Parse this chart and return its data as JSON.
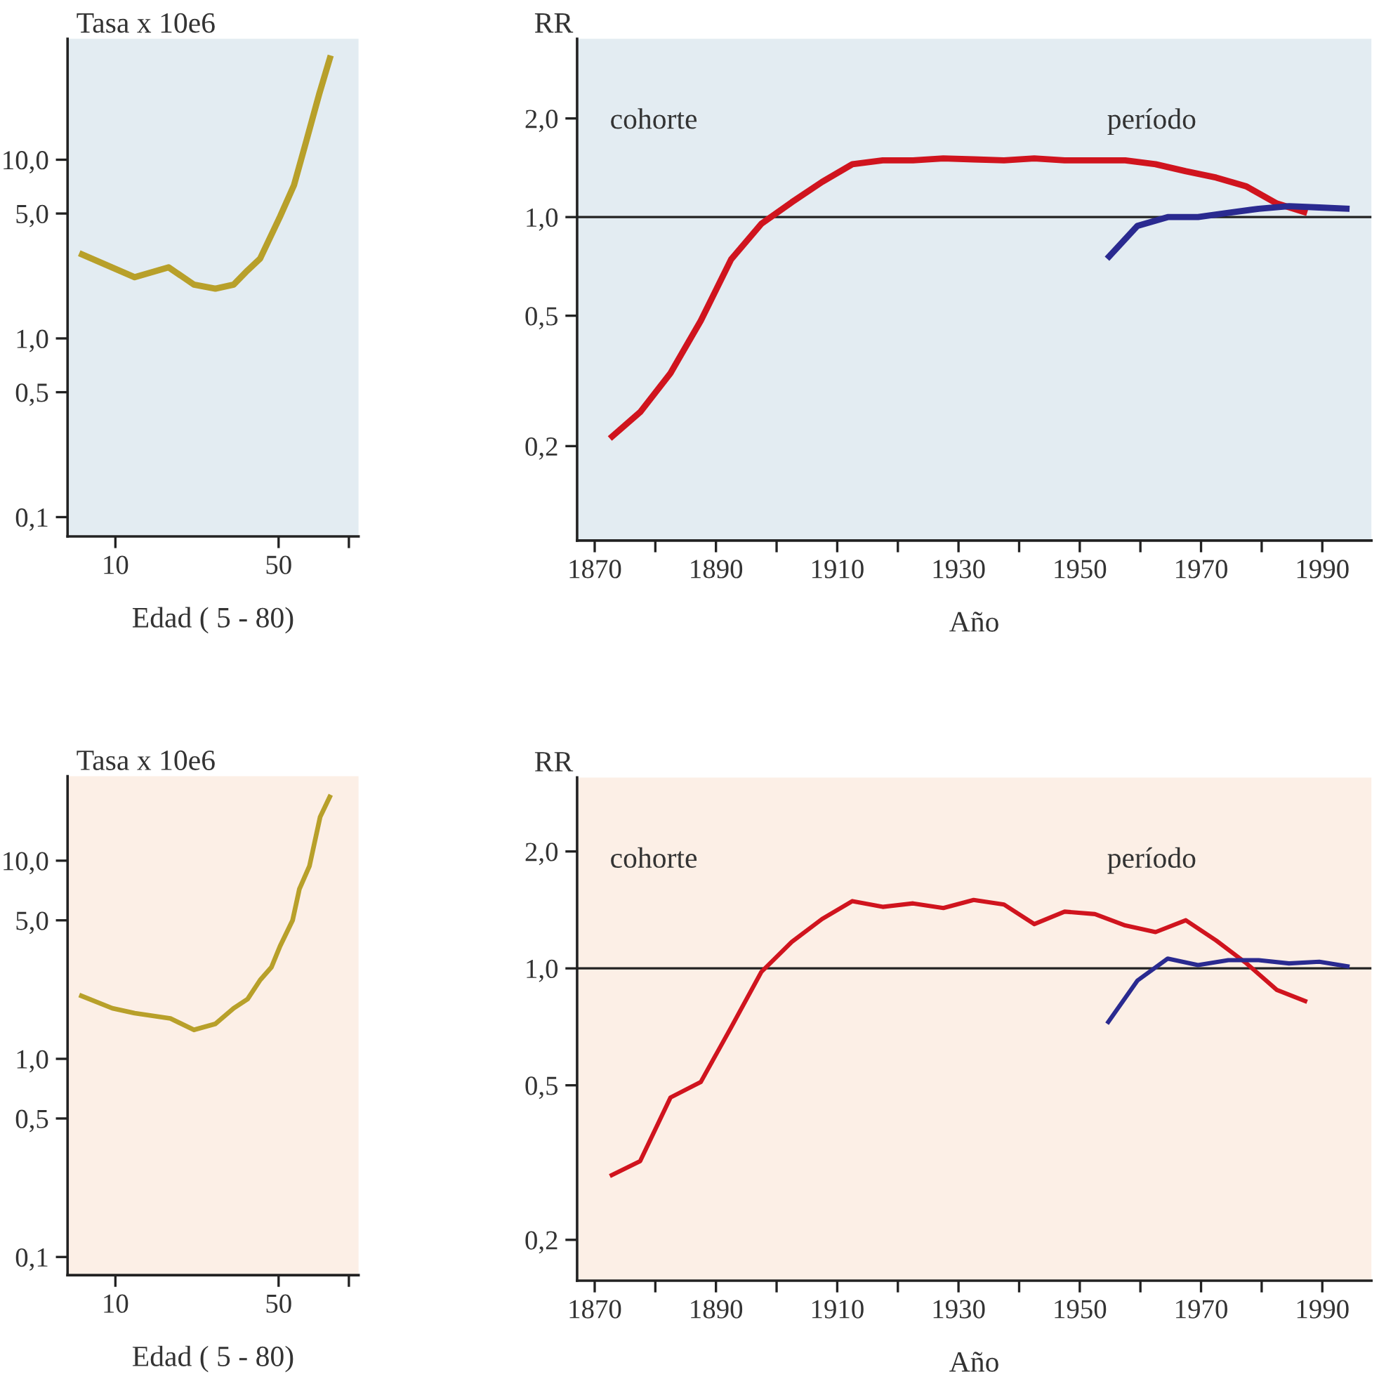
{
  "chart_data": [
    {
      "type": "line",
      "ylabel": "Tasa x 10e6",
      "xlabel": "Edad ( 5 - 80)",
      "log": "xy",
      "xlim": [
        6.24,
        110
      ],
      "xticks": [
        10,
        50,
        {
          "value": 100,
          "label": null
        }
      ],
      "ylim": [
        0.078,
        47.5
      ],
      "yticks": [
        {
          "value": 0.1,
          "label": "0,1"
        },
        {
          "value": 0.5,
          "label": "0,5"
        },
        {
          "value": 1,
          "label": "1,0"
        },
        {
          "value": 5,
          "label": "5,0"
        },
        {
          "value": 10,
          "label": "10,0"
        }
      ],
      "series": [
        {
          "color": "#b8a02a",
          "x": [
            7,
            12.1,
            16.9,
            21.7,
            26.8,
            32.1,
            36.8,
            41.7,
            50.7,
            58.2,
            65.9,
            74.7,
            83.6
          ],
          "values": [
            3.0,
            2.2,
            2.5,
            2.0,
            1.9,
            2.0,
            2.4,
            2.8,
            4.8,
            7.2,
            12.9,
            23.4,
            38.3
          ]
        }
      ],
      "grid": false,
      "legend": false
    },
    {
      "type": "line",
      "ylabel": "RR",
      "xlabel": "Año",
      "log": "y",
      "xlim": [
        1867.1,
        1998.1
      ],
      "xticks": [
        1870,
        {
          "value": 1880,
          "label": null
        },
        1890,
        {
          "value": 1900,
          "label": null
        },
        1910,
        {
          "value": 1920,
          "label": null
        },
        1930,
        {
          "value": 1940,
          "label": null
        },
        1950,
        {
          "value": 1960,
          "label": null
        },
        1970,
        {
          "value": 1980,
          "label": null
        },
        1990
      ],
      "ylim": [
        0.103,
        3.5
      ],
      "yticks": [
        {
          "value": 0.2,
          "label": "0,2"
        },
        {
          "value": 0.5,
          "label": "0,5"
        },
        {
          "value": 1,
          "label": "1,0"
        },
        {
          "value": 2,
          "label": "2,0"
        }
      ],
      "ref_lines": [
        {
          "axis": "y",
          "value": 1,
          "color": "#222222"
        }
      ],
      "annotations": [
        "cohorte",
        "período"
      ],
      "series": [
        {
          "color": "#d0141e",
          "x": [
            1872.5,
            1877.5,
            1882.5,
            1887.5,
            1892.5,
            1897.5,
            1902.5,
            1907.5,
            1912.5,
            1917.5,
            1922.5,
            1927.5,
            1932.5,
            1937.5,
            1942.5,
            1947.5,
            1952.5,
            1957.5,
            1962.5,
            1967.5,
            1972.5,
            1977.5,
            1982.5,
            1987.5
          ],
          "values": [
            0.211,
            0.254,
            0.334,
            0.483,
            0.743,
            0.954,
            1.11,
            1.28,
            1.45,
            1.49,
            1.49,
            1.51,
            1.5,
            1.49,
            1.51,
            1.49,
            1.49,
            1.49,
            1.45,
            1.38,
            1.32,
            1.24,
            1.1,
            1.03
          ]
        },
        {
          "color": "#2a2a90",
          "x": [
            1954.5,
            1959.5,
            1964.5,
            1969.5,
            1974.5,
            1979.5,
            1984.5,
            1989.5,
            1994.5
          ],
          "values": [
            0.746,
            0.94,
            1.0,
            1.0,
            1.03,
            1.06,
            1.08,
            1.07,
            1.06
          ]
        }
      ],
      "grid": false,
      "legend": false
    },
    {
      "type": "line",
      "ylabel": "Tasa x 10e6",
      "xlabel": "Edad ( 5 - 80)",
      "log": "xy",
      "xlim": [
        6.24,
        110
      ],
      "xticks": [
        10,
        50,
        {
          "value": 100,
          "label": null
        }
      ],
      "ylim": [
        0.081,
        26.7
      ],
      "yticks": [
        {
          "value": 0.1,
          "label": "0,1"
        },
        {
          "value": 0.5,
          "label": "0,5"
        },
        {
          "value": 1,
          "label": "1,0"
        },
        {
          "value": 5,
          "label": "5,0"
        },
        {
          "value": 10,
          "label": "10,0"
        }
      ],
      "series": [
        {
          "color": "#b8a02a",
          "x": [
            7,
            9.7,
            12.1,
            17.2,
            21.7,
            26.8,
            32.1,
            36.8,
            41.7,
            46.6,
            50.7,
            57.4,
            61.4,
            67.8,
            75.3,
            83.6
          ],
          "values": [
            2.1,
            1.8,
            1.7,
            1.6,
            1.4,
            1.5,
            1.8,
            2.0,
            2.5,
            2.9,
            3.7,
            5.0,
            7.2,
            9.4,
            16.6,
            21.5
          ]
        }
      ],
      "grid": false,
      "legend": false
    },
    {
      "type": "line",
      "ylabel": "RR",
      "xlabel": "Año",
      "log": "y",
      "xlim": [
        1867.1,
        1998.1
      ],
      "xticks": [
        1870,
        {
          "value": 1880,
          "label": null
        },
        1890,
        {
          "value": 1900,
          "label": null
        },
        1910,
        {
          "value": 1920,
          "label": null
        },
        1930,
        {
          "value": 1940,
          "label": null
        },
        1950,
        {
          "value": 1960,
          "label": null
        },
        1970,
        {
          "value": 1980,
          "label": null
        },
        1990
      ],
      "ylim": [
        0.157,
        3.1
      ],
      "yticks": [
        {
          "value": 0.2,
          "label": "0,2"
        },
        {
          "value": 0.5,
          "label": "0,5"
        },
        {
          "value": 1,
          "label": "1,0"
        },
        {
          "value": 2,
          "label": "2,0"
        }
      ],
      "ref_lines": [
        {
          "axis": "y",
          "value": 1,
          "color": "#222222"
        }
      ],
      "annotations": [
        "cohorte",
        "período"
      ],
      "series": [
        {
          "color": "#d0141e",
          "x": [
            1872.5,
            1877.5,
            1882.5,
            1887.5,
            1892.5,
            1897.5,
            1902.5,
            1907.5,
            1912.5,
            1917.5,
            1922.5,
            1927.5,
            1932.5,
            1937.5,
            1942.5,
            1947.5,
            1952.5,
            1957.5,
            1962.5,
            1967.5,
            1972.5,
            1977.5,
            1982.5,
            1987.5
          ],
          "values": [
            0.292,
            0.319,
            0.465,
            0.51,
            0.705,
            0.98,
            1.17,
            1.34,
            1.49,
            1.44,
            1.47,
            1.43,
            1.5,
            1.46,
            1.3,
            1.4,
            1.38,
            1.29,
            1.24,
            1.33,
            1.18,
            1.03,
            0.88,
            0.82
          ]
        },
        {
          "color": "#2a2a90",
          "x": [
            1954.5,
            1959.5,
            1964.5,
            1969.5,
            1974.5,
            1979.5,
            1984.5,
            1989.5,
            1994.5
          ],
          "values": [
            0.72,
            0.93,
            1.06,
            1.02,
            1.05,
            1.05,
            1.03,
            1.04,
            1.01
          ]
        }
      ],
      "grid": false,
      "legend": false
    }
  ]
}
